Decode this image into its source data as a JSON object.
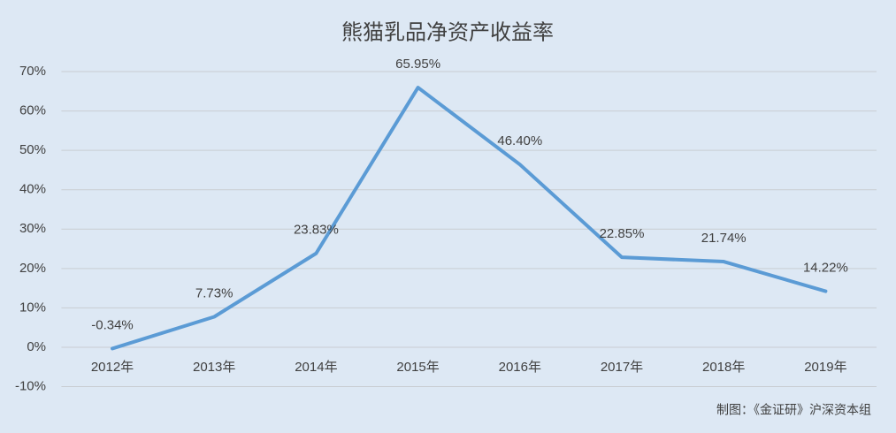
{
  "chart_data": {
    "type": "line",
    "title": "熊猫乳品净资产收益率",
    "categories": [
      "2012年",
      "2013年",
      "2014年",
      "2015年",
      "2016年",
      "2017年",
      "2018年",
      "2019年"
    ],
    "series": [
      {
        "name": "净资产收益率",
        "color": "#5b9bd5",
        "values": [
          -0.34,
          7.73,
          23.83,
          65.95,
          46.4,
          22.85,
          21.74,
          14.22
        ],
        "value_labels": [
          "-0.34%",
          "7.73%",
          "23.83%",
          "65.95%",
          "46.40%",
          "22.85%",
          "21.74%",
          "14.22%"
        ]
      }
    ],
    "ylim": [
      -10,
      70
    ],
    "yticks": [
      {
        "value": -10,
        "label": "-10%"
      },
      {
        "value": 0,
        "label": "0%"
      },
      {
        "value": 10,
        "label": "10%"
      },
      {
        "value": 20,
        "label": "20%"
      },
      {
        "value": 30,
        "label": "30%"
      },
      {
        "value": 40,
        "label": "40%"
      },
      {
        "value": 50,
        "label": "50%"
      },
      {
        "value": 60,
        "label": "60%"
      },
      {
        "value": 70,
        "label": "70%"
      }
    ],
    "grid": true,
    "source": "制图：《金证研》沪深资本组"
  }
}
